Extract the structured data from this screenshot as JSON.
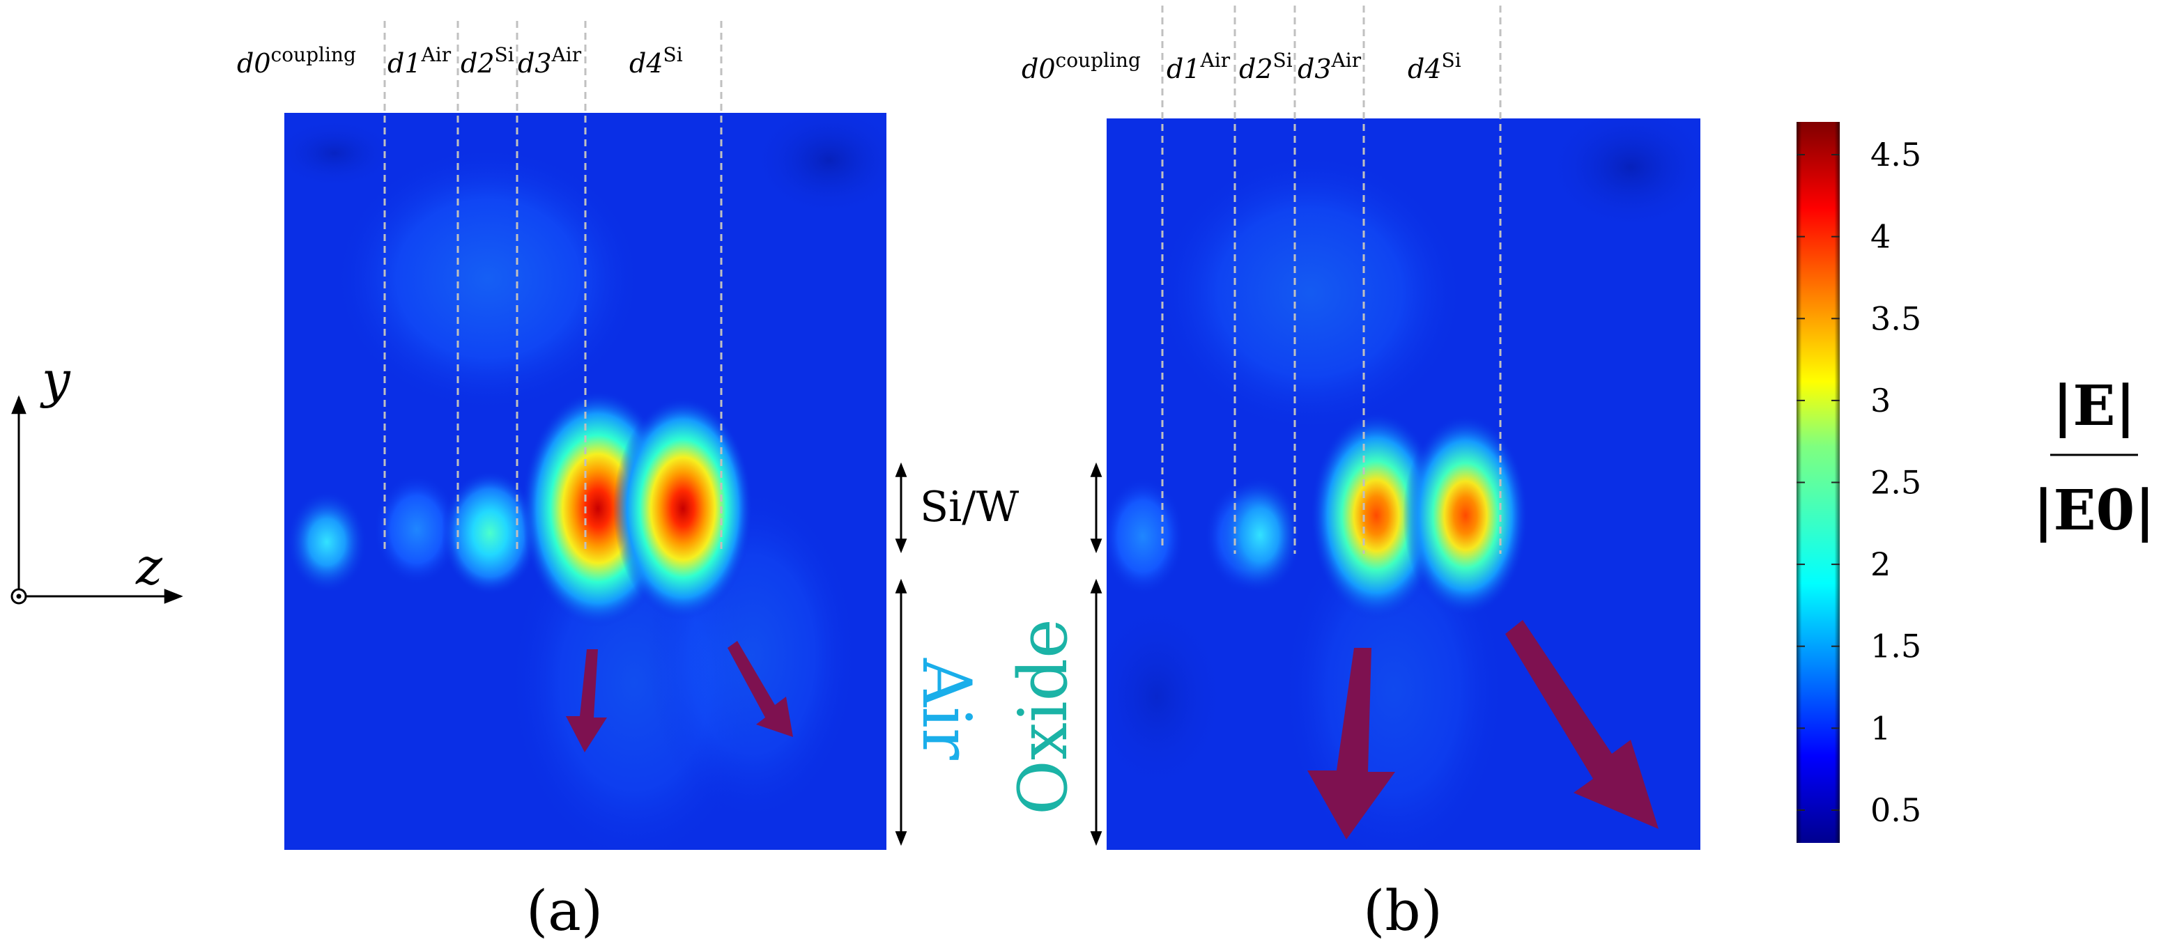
{
  "figure": {
    "colors": {
      "background": "#ffffff",
      "field_base": "#0a2fe6",
      "divider": "#c0c0c0",
      "arrow": "#7e1150",
      "air_label": "#1aaeea",
      "oxide_label": "#1bb3a6",
      "axis": "#000000"
    },
    "axes_icon": {
      "y_label": "y",
      "z_label": "z"
    },
    "dims": {
      "si_w": "Si/W"
    },
    "panels": [
      {
        "id": "a",
        "caption": "(a)",
        "substrate_label": "Air",
        "labels": [
          {
            "base": "d0",
            "sup": "coupling"
          },
          {
            "base": "d1",
            "sup": "Air"
          },
          {
            "base": "d2",
            "sup": "Si"
          },
          {
            "base": "d3",
            "sup": "Air"
          },
          {
            "base": "d4",
            "sup": "Si"
          }
        ]
      },
      {
        "id": "b",
        "caption": "(b)",
        "substrate_label": "Oxide",
        "labels": [
          {
            "base": "d0",
            "sup": "coupling"
          },
          {
            "base": "d1",
            "sup": "Air"
          },
          {
            "base": "d2",
            "sup": "Si"
          },
          {
            "base": "d3",
            "sup": "Air"
          },
          {
            "base": "d4",
            "sup": "Si"
          }
        ]
      }
    ]
  },
  "chart_data": [
    {
      "type": "heatmap",
      "title": "(a)",
      "quantity": "|E| / |E0|",
      "xlabel": "z",
      "ylabel": "y",
      "substrate": "Air",
      "layers": [
        "d0 coupling",
        "d1 Air",
        "d2 Si",
        "d3 Air",
        "d4 Si"
      ],
      "hotspots": [
        {
          "layer": "d0 coupling",
          "peak": 1.9
        },
        {
          "layer": "d1 Air",
          "peak": 1.6
        },
        {
          "layer": "d2 Si",
          "peak": 2.1
        },
        {
          "layer": "d3 Air",
          "peak": 4.2
        },
        {
          "layer": "d4 Si",
          "peak": 4.3
        }
      ]
    },
    {
      "type": "heatmap",
      "title": "(b)",
      "quantity": "|E| / |E0|",
      "xlabel": "z",
      "ylabel": "y",
      "substrate": "Oxide",
      "layers": [
        "d0 coupling",
        "d1 Air",
        "d2 Si",
        "d3 Air",
        "d4 Si"
      ],
      "hotspots": [
        {
          "layer": "d0 coupling",
          "peak": 1.4
        },
        {
          "layer": "d1 Air",
          "peak": 1.2
        },
        {
          "layer": "d2 Si",
          "peak": 1.8
        },
        {
          "layer": "d3 Air",
          "peak": 3.6
        },
        {
          "layer": "d4 Si",
          "peak": 3.7
        }
      ]
    },
    {
      "type": "colorbar",
      "label_numerator": "|E|",
      "label_denominator": "|E0|",
      "range": [
        0.3,
        4.7
      ],
      "ticks": [
        "4.5",
        "4",
        "3.5",
        "3",
        "2.5",
        "2",
        "1.5",
        "1",
        "0.5"
      ],
      "tick_values": [
        4.5,
        4,
        3.5,
        3,
        2.5,
        2,
        1.5,
        1,
        0.5
      ],
      "colormap": "jet"
    }
  ]
}
